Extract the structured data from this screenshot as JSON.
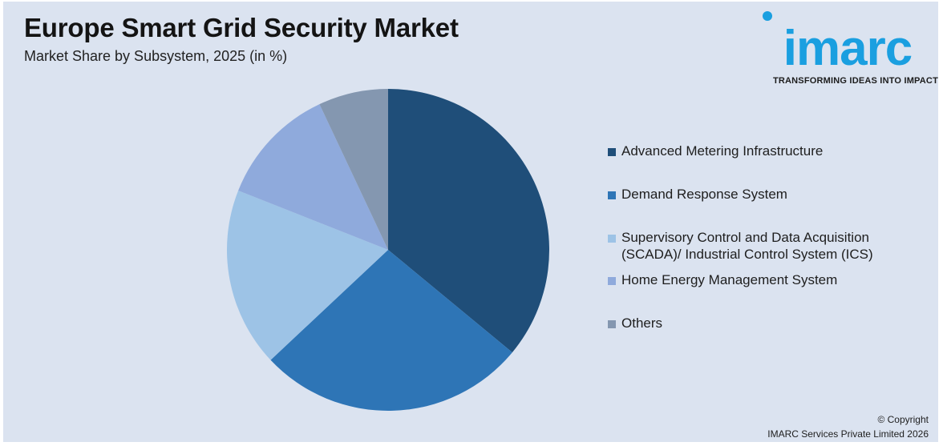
{
  "header": {
    "title": "Europe Smart Grid Security Market",
    "subtitle": "Market Share by Subsystem, 2025 (in %)"
  },
  "logo": {
    "wordmark": "imarc",
    "tagline": "TRANSFORMING IDEAS INTO IMPACT",
    "color": "#1a9fe0"
  },
  "chart_data": {
    "type": "pie",
    "title": "Europe Smart Grid Security Market",
    "subtitle": "Market Share by Subsystem, 2025 (in %)",
    "start_angle_deg": 0,
    "direction": "clockwise",
    "legend_position": "right",
    "slices": [
      {
        "label": "Advanced Metering Infrastructure",
        "value": 36,
        "color": "#1f4e79"
      },
      {
        "label": "Demand Response System",
        "value": 27,
        "color": "#2e75b6"
      },
      {
        "label": "Supervisory Control and Data Acquisition (SCADA)/ Industrial Control System (ICS)",
        "value": 18,
        "color": "#9dc3e6"
      },
      {
        "label": "Home Energy Management System",
        "value": 12,
        "color": "#8faadc"
      },
      {
        "label": "Others",
        "value": 7,
        "color": "#8497b0"
      }
    ]
  },
  "legend": {
    "items": [
      {
        "line1": "Advanced Metering Infrastructure",
        "line2": ""
      },
      {
        "line1": "Demand Response System",
        "line2": ""
      },
      {
        "line1": "Supervisory Control and Data Acquisition",
        "line2": "(SCADA)/ Industrial Control System (ICS)"
      },
      {
        "line1": "Home Energy Management System",
        "line2": ""
      },
      {
        "line1": "Others",
        "line2": ""
      }
    ]
  },
  "footer": {
    "copyright_line1": "© Copyright",
    "copyright_line2": "IMARC Services Private Limited 2026"
  }
}
